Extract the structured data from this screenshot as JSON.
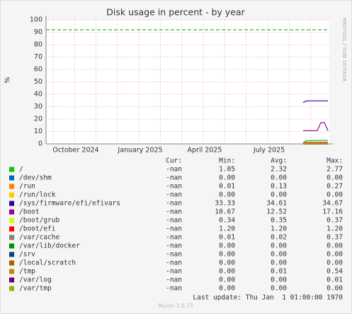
{
  "chart_data": {
    "type": "line",
    "title": "Disk usage in percent - by year",
    "y_label": "%",
    "side_label": "RRDTOOL / TOBI OETIKER",
    "ylim": [
      0,
      100
    ],
    "yticks": [
      0,
      10,
      20,
      30,
      40,
      50,
      60,
      70,
      80,
      90,
      100
    ],
    "grid": true,
    "xticks": [
      "October 2024",
      "January 2025",
      "April 2025",
      "July 2025"
    ],
    "warning": 92,
    "warning_color": "#00aa00",
    "columns": [
      "Cur:",
      "Min:",
      "Avg:",
      "Max:"
    ],
    "series": [
      {
        "name": "/",
        "color": "#00cc00",
        "values": [
          1.05,
          2.5,
          2.6,
          2.7,
          2.77,
          2.77,
          2.77,
          2.77
        ],
        "stats": [
          "-nan",
          "1.05",
          "2.32",
          "2.77"
        ]
      },
      {
        "name": "/dev/shm",
        "color": "#0066b3",
        "values": [
          0,
          0,
          0,
          0,
          0,
          0,
          0,
          0
        ],
        "stats": [
          "-nan",
          "0.00",
          "0.00",
          "0.00"
        ]
      },
      {
        "name": "/run",
        "color": "#ff8000",
        "values": [
          0.01,
          0.1,
          0.1,
          0.15,
          0.2,
          0.27,
          0.2,
          0.1
        ],
        "stats": [
          "-nan",
          "0.01",
          "0.13",
          "0.27"
        ]
      },
      {
        "name": "/run/lock",
        "color": "#ffcc00",
        "values": [
          0,
          0,
          0,
          0,
          0,
          0,
          0,
          0
        ],
        "stats": [
          "-nan",
          "0.00",
          "0.00",
          "0.00"
        ]
      },
      {
        "name": "/sys/firmware/efi/efivars",
        "color": "#330099",
        "values": [
          33.33,
          34.67,
          34.67,
          34.67,
          34.67,
          34.67,
          34.67,
          34.67
        ],
        "stats": [
          "-nan",
          "33.33",
          "34.61",
          "34.67"
        ]
      },
      {
        "name": "/boot",
        "color": "#990099",
        "values": [
          10.67,
          10.67,
          10.67,
          10.67,
          10.67,
          17.16,
          17.16,
          10.67
        ],
        "stats": [
          "-nan",
          "10.67",
          "12.52",
          "17.16"
        ]
      },
      {
        "name": "/boot/grub",
        "color": "#ccff00",
        "values": [
          0.34,
          0.35,
          0.35,
          0.35,
          0.35,
          0.35,
          0.37,
          0.37
        ],
        "stats": [
          "-nan",
          "0.34",
          "0.35",
          "0.37"
        ]
      },
      {
        "name": "/boot/efi",
        "color": "#ff0000",
        "values": [
          1.2,
          1.2,
          1.2,
          1.2,
          1.2,
          1.2,
          1.2,
          1.2
        ],
        "stats": [
          "-nan",
          "1.20",
          "1.20",
          "1.20"
        ]
      },
      {
        "name": "/var/cache",
        "color": "#808080",
        "values": [
          0.01,
          0.01,
          0.01,
          0.01,
          0.01,
          0.01,
          0.37,
          0.01
        ],
        "stats": [
          "-nan",
          "0.01",
          "0.02",
          "0.37"
        ]
      },
      {
        "name": "/var/lib/docker",
        "color": "#008f00",
        "values": [
          0,
          0,
          0,
          0,
          0,
          0,
          0,
          0
        ],
        "stats": [
          "-nan",
          "0.00",
          "0.00",
          "0.00"
        ]
      },
      {
        "name": "/srv",
        "color": "#00487d",
        "values": [
          0,
          0,
          0,
          0,
          0,
          0,
          0,
          0
        ],
        "stats": [
          "-nan",
          "0.00",
          "0.00",
          "0.00"
        ]
      },
      {
        "name": "/local/scratch",
        "color": "#b35a00",
        "values": [
          0,
          0,
          0,
          0,
          0,
          0,
          0,
          0
        ],
        "stats": [
          "-nan",
          "0.00",
          "0.00",
          "0.00"
        ]
      },
      {
        "name": "/tmp",
        "color": "#b38f00",
        "values": [
          0,
          0,
          0,
          0,
          0,
          0.54,
          0,
          0
        ],
        "stats": [
          "-nan",
          "0.00",
          "0.01",
          "0.54"
        ]
      },
      {
        "name": "/var/log",
        "color": "#6b006b",
        "values": [
          0,
          0,
          0,
          0,
          0,
          0,
          0.01,
          0
        ],
        "stats": [
          "-nan",
          "0.00",
          "0.00",
          "0.01"
        ]
      },
      {
        "name": "/var/tmp",
        "color": "#8fb300",
        "values": [
          0,
          0,
          0,
          0,
          0,
          0,
          0,
          0
        ],
        "stats": [
          "-nan",
          "0.00",
          "0.00",
          "0.00"
        ]
      }
    ],
    "last_update": "Last update: Thu Jan  1 01:00:00 1970",
    "footer": "Munin 2.0.75"
  }
}
